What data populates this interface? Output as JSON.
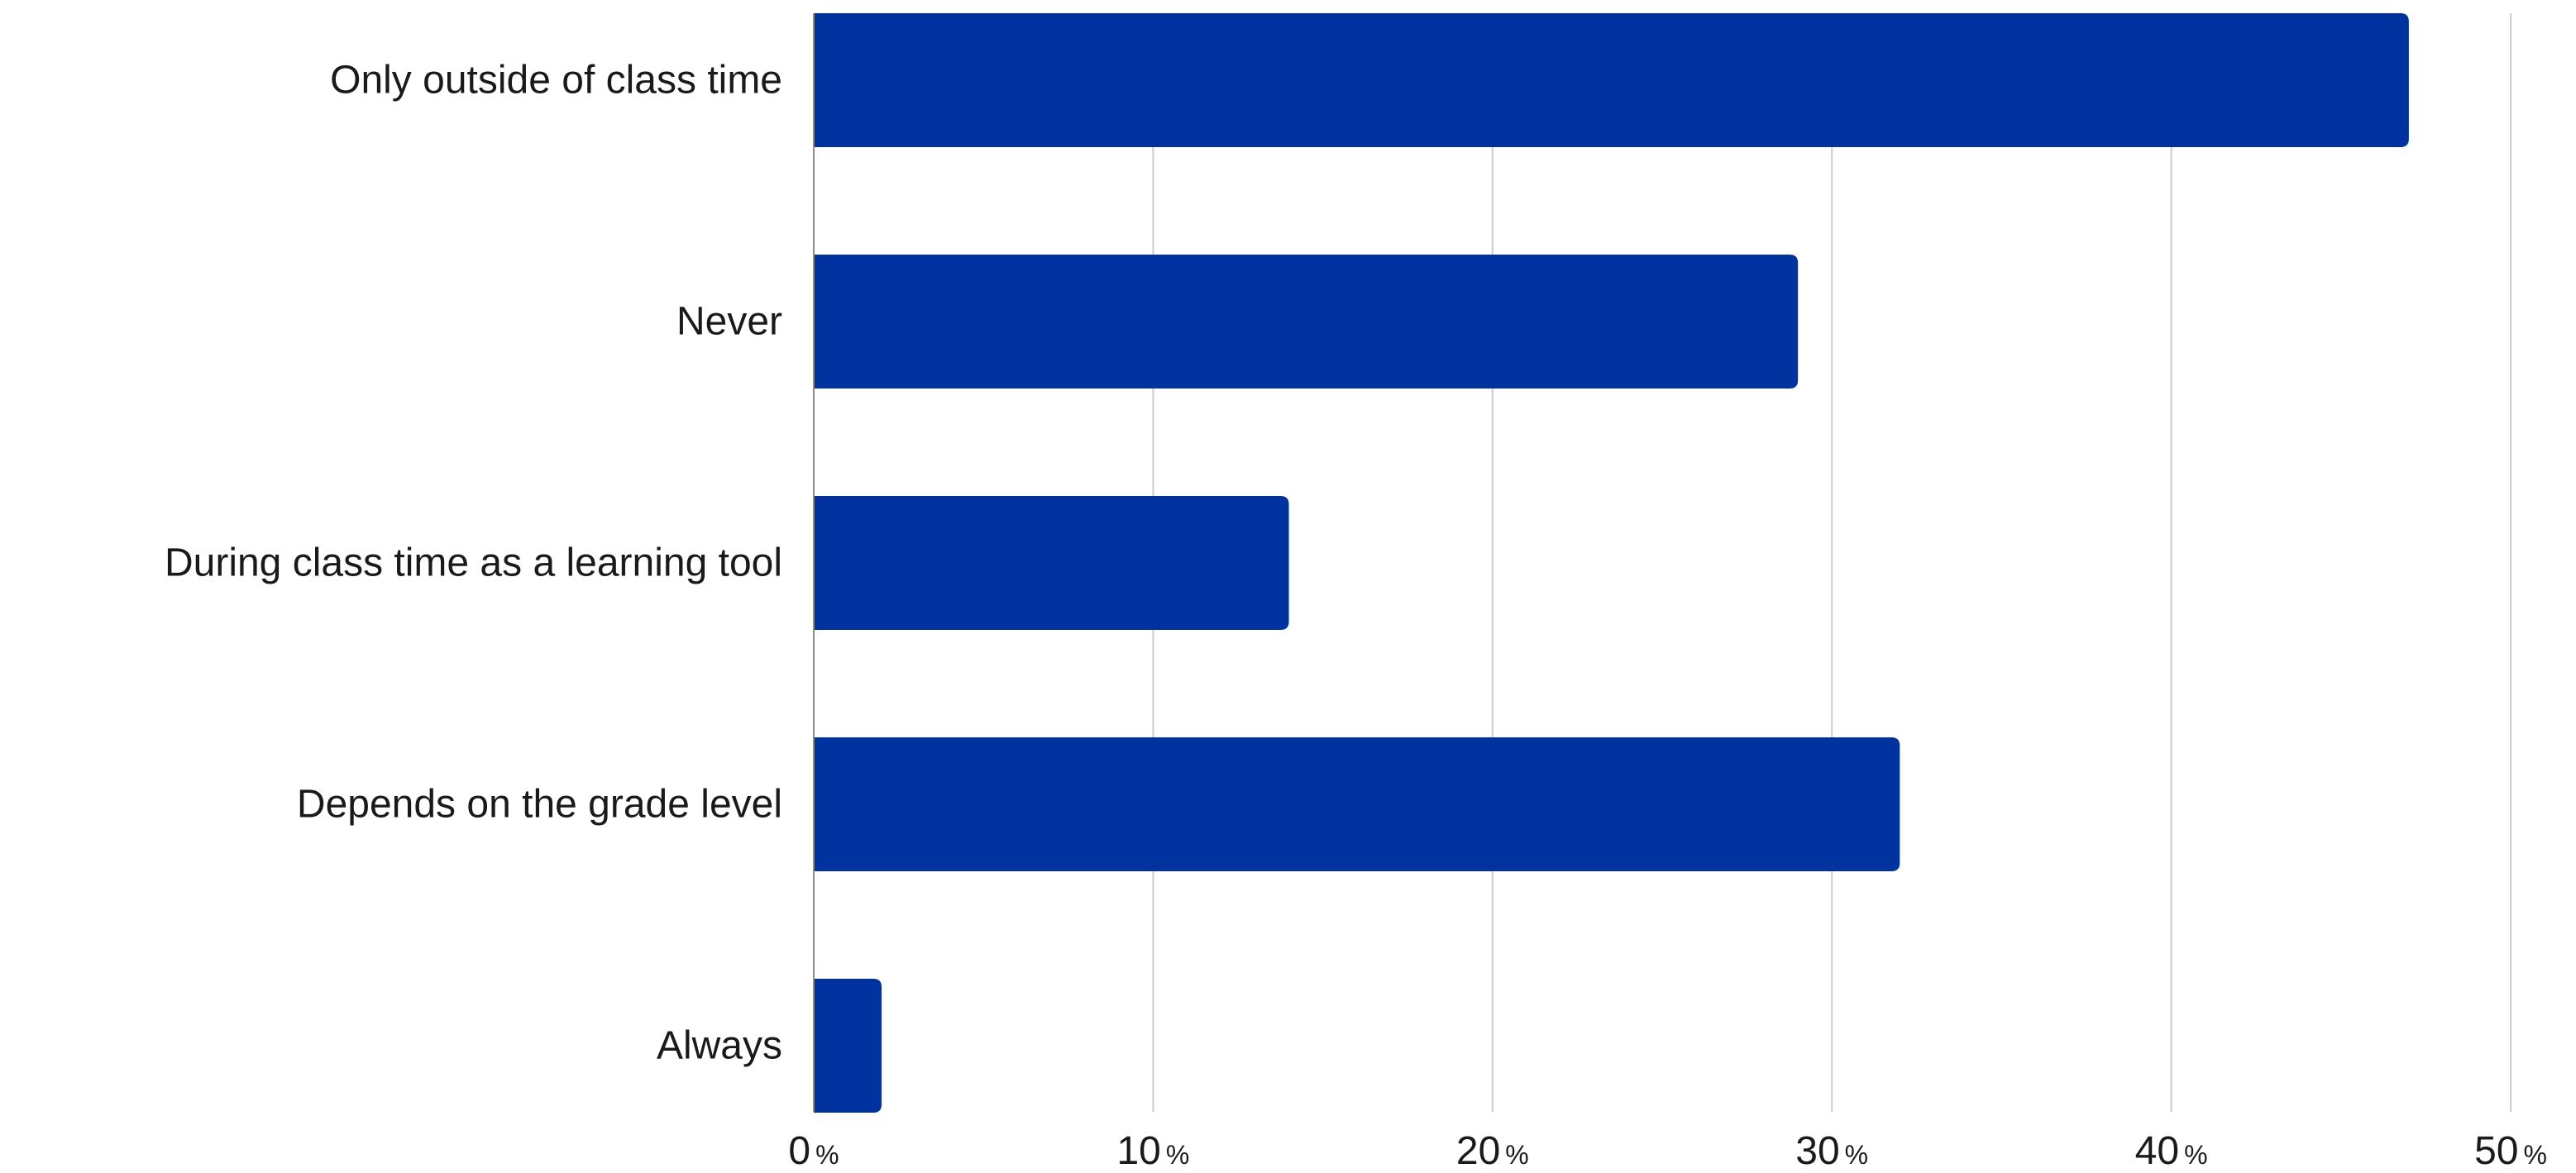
{
  "chart_data": {
    "type": "bar",
    "orientation": "horizontal",
    "categories": [
      "Only outside of class time",
      "Never",
      "During class time as a learning tool",
      "Depends on the grade level",
      "Always"
    ],
    "values": [
      47,
      29,
      14,
      32,
      2
    ],
    "xlim": [
      0,
      50
    ],
    "xticks": [
      0,
      10,
      20,
      30,
      40,
      50
    ],
    "tick_suffix": "%",
    "grid": true,
    "legend": "none",
    "bar_color": "#0033a0",
    "grid_color": "#cccccc",
    "axis_color": "#8a8a8a",
    "text_color": "#1a1a1a"
  }
}
